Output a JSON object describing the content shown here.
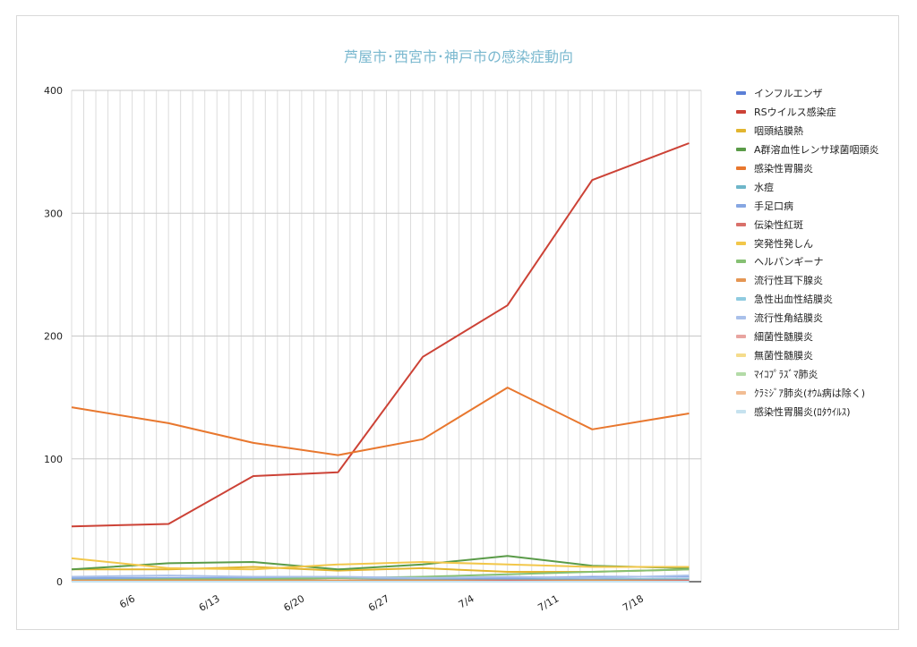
{
  "chart_data": {
    "type": "line",
    "title": "芦屋市･西宮市･神戸市の感染症動向",
    "xlabel": "",
    "ylabel": "",
    "ylim": [
      0,
      400
    ],
    "yticks": [
      0,
      100,
      200,
      300,
      400
    ],
    "x_range": [
      "2021-06-01",
      "2021-07-23"
    ],
    "xticks": [
      "6/6",
      "6/13",
      "6/20",
      "6/27",
      "7/4",
      "7/11",
      "7/18"
    ],
    "grid": true,
    "legend_position": "right",
    "x": [
      "2021-06-01",
      "2021-06-09",
      "2021-06-16",
      "2021-06-23",
      "2021-06-30",
      "2021-07-07",
      "2021-07-14",
      "2021-07-22"
    ],
    "series": [
      {
        "name": "インフルエンザ",
        "color": "#5b7fd6",
        "values": [
          0,
          0,
          0,
          0,
          0,
          0,
          0,
          0
        ]
      },
      {
        "name": "RSウイルス感染症",
        "color": "#cc4236",
        "values": [
          45,
          47,
          86,
          89,
          183,
          225,
          327,
          357
        ]
      },
      {
        "name": "咽頭結膜熱",
        "color": "#e2b52f",
        "values": [
          10,
          10,
          12,
          9,
          11,
          8,
          8,
          10
        ]
      },
      {
        "name": "A群溶血性レンサ球菌咽頭炎",
        "color": "#5a9b48",
        "values": [
          10,
          15,
          16,
          10,
          14,
          21,
          13,
          11
        ]
      },
      {
        "name": "感染性胃腸炎",
        "color": "#e8772e",
        "values": [
          142,
          129,
          113,
          103,
          116,
          158,
          124,
          137
        ]
      },
      {
        "name": "水痘",
        "color": "#6eb6c9",
        "values": [
          2,
          2,
          2,
          1,
          2,
          2,
          2,
          2
        ]
      },
      {
        "name": "手足口病",
        "color": "#86a6e2",
        "values": [
          3,
          3,
          3,
          3,
          3,
          3,
          4,
          4
        ]
      },
      {
        "name": "伝染性紅斑",
        "color": "#d9706a",
        "values": [
          1,
          1,
          1,
          1,
          1,
          1,
          1,
          1
        ]
      },
      {
        "name": "突発性発しん",
        "color": "#f2c74a",
        "values": [
          19,
          11,
          10,
          14,
          16,
          14,
          12,
          12
        ]
      },
      {
        "name": "ヘルパンギーナ",
        "color": "#86c073",
        "values": [
          1,
          2,
          2,
          3,
          4,
          6,
          8,
          10
        ]
      },
      {
        "name": "流行性耳下腺炎",
        "color": "#e59653",
        "values": [
          1,
          1,
          1,
          1,
          1,
          0,
          1,
          0
        ]
      },
      {
        "name": "急性出血性結膜炎",
        "color": "#8fcbe0",
        "values": [
          0,
          0,
          0,
          0,
          0,
          0,
          0,
          0
        ]
      },
      {
        "name": "流行性角結膜炎",
        "color": "#a9c0ea",
        "values": [
          4,
          5,
          4,
          4,
          3,
          4,
          3,
          5
        ]
      },
      {
        "name": "細菌性髄膜炎",
        "color": "#e8a4a0",
        "values": [
          0,
          0,
          0,
          0,
          0,
          0,
          0,
          0
        ]
      },
      {
        "name": "無菌性髄膜炎",
        "color": "#f5dc8c",
        "values": [
          0,
          0,
          0,
          0,
          0,
          0,
          0,
          0
        ]
      },
      {
        "name": "ﾏｲｺﾌﾟﾗｽﾞﾏ肺炎",
        "color": "#b3dba7",
        "values": [
          0,
          0,
          0,
          0,
          0,
          0,
          0,
          0
        ]
      },
      {
        "name": "ｸﾗﾐｼﾞｱ肺炎(ｵｳﾑ病は除く)",
        "color": "#f2bd94",
        "values": [
          0,
          0,
          0,
          0,
          0,
          0,
          0,
          0
        ]
      },
      {
        "name": "感染性胃腸炎(ﾛﾀｳｲﾙｽ)",
        "color": "#c6e2ef",
        "values": [
          0,
          0,
          0,
          0,
          0,
          0,
          0,
          0
        ]
      }
    ]
  }
}
